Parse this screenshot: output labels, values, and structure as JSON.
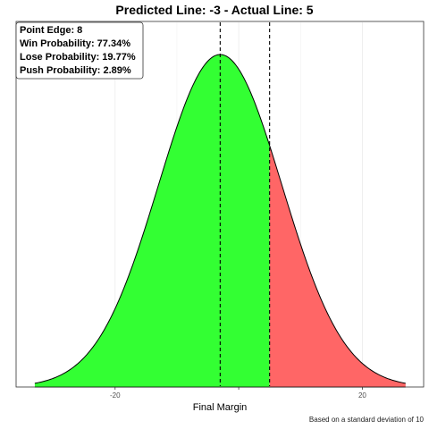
{
  "chart_data": {
    "type": "area",
    "title": "Predicted Line: -3  -  Actual Line: 5",
    "xlabel": "Final Margin",
    "ylabel": "",
    "caption": "Based on a standard deviation of 10",
    "distribution": {
      "family": "normal",
      "mean": -3,
      "sd": 10
    },
    "xlim": [
      -33,
      27
    ],
    "x_ticks": [
      -20,
      0,
      20
    ],
    "x_tick_labels": [
      "-20",
      "",
      "20"
    ],
    "vlines": [
      -3,
      5
    ],
    "regions": [
      {
        "from": -33,
        "to": 5,
        "color": "#33ff33",
        "label": "win"
      },
      {
        "from": 5,
        "to": 27,
        "color": "#ff6666",
        "label": "lose"
      }
    ],
    "annotations": [
      "Point Edge: 8",
      "Win Probability: 77.34%",
      "Lose Probability: 19.77%",
      "Push Probability: 2.89%"
    ],
    "grid": true,
    "legend": "none"
  },
  "colors": {
    "win": "#33ff33",
    "lose": "#ff6666",
    "grid": "#ebebeb"
  }
}
